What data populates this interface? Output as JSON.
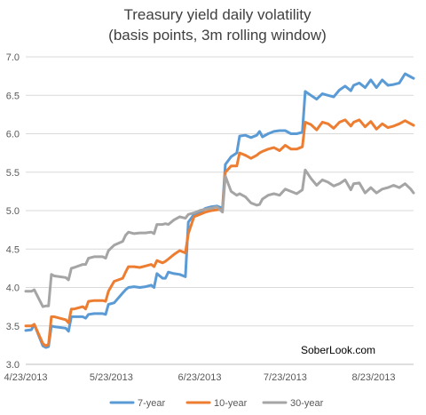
{
  "chart_data": {
    "type": "line",
    "title_lines": [
      "Treasury yield daily volatility",
      "(basis points, 3m rolling window)"
    ],
    "xlabel": "",
    "ylabel": "",
    "x_ticks": [
      "4/23/2013",
      "5/23/2013",
      "6/23/2013",
      "7/23/2013",
      "8/23/2013"
    ],
    "y_ticks": [
      "3.0",
      "3.5",
      "4.0",
      "4.5",
      "5.0",
      "5.5",
      "6.0",
      "6.5",
      "7.0"
    ],
    "ylim": [
      3.0,
      7.0
    ],
    "xlim": [
      "2013-04-23",
      "2013-09-06"
    ],
    "grid": true,
    "legend_position": "bottom",
    "annotation": "SoberLook.com",
    "series": [
      {
        "name": "7-year",
        "color": "#5B9BD5",
        "points": [
          [
            "2013-04-23",
            3.44
          ],
          [
            "2013-04-25",
            3.45
          ],
          [
            "2013-04-26",
            3.52
          ],
          [
            "2013-04-29",
            3.24
          ],
          [
            "2013-04-30",
            3.22
          ],
          [
            "2013-05-01",
            3.23
          ],
          [
            "2013-05-02",
            3.5
          ],
          [
            "2013-05-03",
            3.49
          ],
          [
            "2013-05-07",
            3.47
          ],
          [
            "2013-05-08",
            3.43
          ],
          [
            "2013-05-09",
            3.62
          ],
          [
            "2013-05-10",
            3.62
          ],
          [
            "2013-05-13",
            3.62
          ],
          [
            "2013-05-14",
            3.6
          ],
          [
            "2013-05-15",
            3.65
          ],
          [
            "2013-05-17",
            3.66
          ],
          [
            "2013-05-20",
            3.66
          ],
          [
            "2013-05-21",
            3.65
          ],
          [
            "2013-05-22",
            3.78
          ],
          [
            "2013-05-24",
            3.8
          ],
          [
            "2013-05-27",
            3.93
          ],
          [
            "2013-05-28",
            3.97
          ],
          [
            "2013-05-29",
            4.0
          ],
          [
            "2013-05-31",
            4.01
          ],
          [
            "2013-06-02",
            4.0
          ],
          [
            "2013-06-04",
            4.01
          ],
          [
            "2013-06-06",
            4.03
          ],
          [
            "2013-06-07",
            4.0
          ],
          [
            "2013-06-08",
            4.18
          ],
          [
            "2013-06-10",
            4.12
          ],
          [
            "2013-06-11",
            4.12
          ],
          [
            "2013-06-12",
            4.2
          ],
          [
            "2013-06-14",
            4.18
          ],
          [
            "2013-06-16",
            4.17
          ],
          [
            "2013-06-18",
            4.14
          ],
          [
            "2013-06-19",
            4.85
          ],
          [
            "2013-06-21",
            4.95
          ],
          [
            "2013-06-23",
            4.97
          ],
          [
            "2013-06-25",
            5.03
          ],
          [
            "2013-06-27",
            5.05
          ],
          [
            "2013-06-29",
            5.06
          ],
          [
            "2013-07-01",
            5.03
          ],
          [
            "2013-07-02",
            5.6
          ],
          [
            "2013-07-04",
            5.7
          ],
          [
            "2013-07-06",
            5.75
          ],
          [
            "2013-07-07",
            5.97
          ],
          [
            "2013-07-09",
            5.98
          ],
          [
            "2013-07-11",
            5.95
          ],
          [
            "2013-07-13",
            5.98
          ],
          [
            "2013-07-14",
            6.03
          ],
          [
            "2013-07-15",
            5.96
          ],
          [
            "2013-07-17",
            6.0
          ],
          [
            "2013-07-19",
            6.03
          ],
          [
            "2013-07-21",
            6.04
          ],
          [
            "2013-07-23",
            6.04
          ],
          [
            "2013-07-25",
            6.0
          ],
          [
            "2013-07-27",
            6.0
          ],
          [
            "2013-07-29",
            6.02
          ],
          [
            "2013-07-30",
            6.55
          ],
          [
            "2013-08-01",
            6.5
          ],
          [
            "2013-08-03",
            6.45
          ],
          [
            "2013-08-05",
            6.52
          ],
          [
            "2013-08-07",
            6.5
          ],
          [
            "2013-08-09",
            6.48
          ],
          [
            "2013-08-11",
            6.57
          ],
          [
            "2013-08-13",
            6.62
          ],
          [
            "2013-08-15",
            6.56
          ],
          [
            "2013-08-16",
            6.63
          ],
          [
            "2013-08-18",
            6.66
          ],
          [
            "2013-08-20",
            6.6
          ],
          [
            "2013-08-22",
            6.7
          ],
          [
            "2013-08-24",
            6.6
          ],
          [
            "2013-08-26",
            6.7
          ],
          [
            "2013-08-28",
            6.63
          ],
          [
            "2013-08-30",
            6.64
          ],
          [
            "2013-09-01",
            6.66
          ],
          [
            "2013-09-03",
            6.78
          ],
          [
            "2013-09-05",
            6.74
          ],
          [
            "2013-09-06",
            6.72
          ]
        ]
      },
      {
        "name": "10-year",
        "color": "#ED7D31",
        "points": [
          [
            "2013-04-23",
            3.5
          ],
          [
            "2013-04-25",
            3.5
          ],
          [
            "2013-04-26",
            3.52
          ],
          [
            "2013-04-29",
            3.27
          ],
          [
            "2013-04-30",
            3.24
          ],
          [
            "2013-05-01",
            3.26
          ],
          [
            "2013-05-02",
            3.62
          ],
          [
            "2013-05-03",
            3.62
          ],
          [
            "2013-05-07",
            3.58
          ],
          [
            "2013-05-08",
            3.54
          ],
          [
            "2013-05-09",
            3.72
          ],
          [
            "2013-05-10",
            3.72
          ],
          [
            "2013-05-13",
            3.75
          ],
          [
            "2013-05-14",
            3.72
          ],
          [
            "2013-05-15",
            3.82
          ],
          [
            "2013-05-17",
            3.83
          ],
          [
            "2013-05-20",
            3.83
          ],
          [
            "2013-05-21",
            3.82
          ],
          [
            "2013-05-22",
            3.95
          ],
          [
            "2013-05-24",
            4.08
          ],
          [
            "2013-05-27",
            4.12
          ],
          [
            "2013-05-28",
            4.2
          ],
          [
            "2013-05-29",
            4.27
          ],
          [
            "2013-05-31",
            4.27
          ],
          [
            "2013-06-02",
            4.26
          ],
          [
            "2013-06-04",
            4.28
          ],
          [
            "2013-06-06",
            4.3
          ],
          [
            "2013-06-07",
            4.27
          ],
          [
            "2013-06-08",
            4.35
          ],
          [
            "2013-06-10",
            4.32
          ],
          [
            "2013-06-11",
            4.34
          ],
          [
            "2013-06-12",
            4.37
          ],
          [
            "2013-06-14",
            4.43
          ],
          [
            "2013-06-16",
            4.48
          ],
          [
            "2013-06-18",
            4.45
          ],
          [
            "2013-06-19",
            4.7
          ],
          [
            "2013-06-21",
            4.92
          ],
          [
            "2013-06-23",
            4.95
          ],
          [
            "2013-06-25",
            4.98
          ],
          [
            "2013-06-27",
            5.0
          ],
          [
            "2013-06-29",
            5.01
          ],
          [
            "2013-07-01",
            5.02
          ],
          [
            "2013-07-02",
            5.5
          ],
          [
            "2013-07-04",
            5.58
          ],
          [
            "2013-07-06",
            5.58
          ],
          [
            "2013-07-07",
            5.75
          ],
          [
            "2013-07-09",
            5.72
          ],
          [
            "2013-07-11",
            5.68
          ],
          [
            "2013-07-13",
            5.72
          ],
          [
            "2013-07-14",
            5.75
          ],
          [
            "2013-07-15",
            5.77
          ],
          [
            "2013-07-17",
            5.8
          ],
          [
            "2013-07-19",
            5.82
          ],
          [
            "2013-07-21",
            5.78
          ],
          [
            "2013-07-23",
            5.85
          ],
          [
            "2013-07-25",
            5.8
          ],
          [
            "2013-07-27",
            5.8
          ],
          [
            "2013-07-29",
            5.83
          ],
          [
            "2013-07-30",
            6.15
          ],
          [
            "2013-08-01",
            6.12
          ],
          [
            "2013-08-03",
            6.05
          ],
          [
            "2013-08-05",
            6.15
          ],
          [
            "2013-08-07",
            6.13
          ],
          [
            "2013-08-09",
            6.07
          ],
          [
            "2013-08-11",
            6.15
          ],
          [
            "2013-08-13",
            6.18
          ],
          [
            "2013-08-15",
            6.1
          ],
          [
            "2013-08-16",
            6.15
          ],
          [
            "2013-08-18",
            6.18
          ],
          [
            "2013-08-20",
            6.09
          ],
          [
            "2013-08-22",
            6.16
          ],
          [
            "2013-08-24",
            6.06
          ],
          [
            "2013-08-26",
            6.13
          ],
          [
            "2013-08-28",
            6.08
          ],
          [
            "2013-08-30",
            6.1
          ],
          [
            "2013-09-01",
            6.13
          ],
          [
            "2013-09-03",
            6.17
          ],
          [
            "2013-09-05",
            6.13
          ],
          [
            "2013-09-06",
            6.11
          ]
        ]
      },
      {
        "name": "30-year",
        "color": "#A5A5A5",
        "points": [
          [
            "2013-04-23",
            3.95
          ],
          [
            "2013-04-25",
            3.95
          ],
          [
            "2013-04-26",
            3.97
          ],
          [
            "2013-04-29",
            3.75
          ],
          [
            "2013-04-30",
            3.76
          ],
          [
            "2013-05-01",
            3.76
          ],
          [
            "2013-05-02",
            4.17
          ],
          [
            "2013-05-03",
            4.15
          ],
          [
            "2013-05-07",
            4.13
          ],
          [
            "2013-05-08",
            4.1
          ],
          [
            "2013-05-09",
            4.25
          ],
          [
            "2013-05-10",
            4.26
          ],
          [
            "2013-05-13",
            4.3
          ],
          [
            "2013-05-14",
            4.3
          ],
          [
            "2013-05-15",
            4.38
          ],
          [
            "2013-05-17",
            4.4
          ],
          [
            "2013-05-20",
            4.4
          ],
          [
            "2013-05-21",
            4.38
          ],
          [
            "2013-05-22",
            4.48
          ],
          [
            "2013-05-24",
            4.55
          ],
          [
            "2013-05-27",
            4.6
          ],
          [
            "2013-05-28",
            4.68
          ],
          [
            "2013-05-29",
            4.72
          ],
          [
            "2013-05-31",
            4.7
          ],
          [
            "2013-06-02",
            4.71
          ],
          [
            "2013-06-04",
            4.71
          ],
          [
            "2013-06-06",
            4.72
          ],
          [
            "2013-06-07",
            4.7
          ],
          [
            "2013-06-08",
            4.82
          ],
          [
            "2013-06-10",
            4.82
          ],
          [
            "2013-06-11",
            4.83
          ],
          [
            "2013-06-12",
            4.82
          ],
          [
            "2013-06-14",
            4.88
          ],
          [
            "2013-06-16",
            4.92
          ],
          [
            "2013-06-18",
            4.9
          ],
          [
            "2013-06-19",
            4.95
          ],
          [
            "2013-06-21",
            4.97
          ],
          [
            "2013-06-23",
            5.0
          ],
          [
            "2013-06-25",
            5.02
          ],
          [
            "2013-06-27",
            5.03
          ],
          [
            "2013-06-29",
            5.05
          ],
          [
            "2013-07-01",
            4.98
          ],
          [
            "2013-07-02",
            5.45
          ],
          [
            "2013-07-04",
            5.25
          ],
          [
            "2013-07-06",
            5.2
          ],
          [
            "2013-07-07",
            5.22
          ],
          [
            "2013-07-09",
            5.18
          ],
          [
            "2013-07-11",
            5.1
          ],
          [
            "2013-07-13",
            5.07
          ],
          [
            "2013-07-14",
            5.08
          ],
          [
            "2013-07-15",
            5.15
          ],
          [
            "2013-07-17",
            5.2
          ],
          [
            "2013-07-19",
            5.22
          ],
          [
            "2013-07-21",
            5.2
          ],
          [
            "2013-07-23",
            5.28
          ],
          [
            "2013-07-25",
            5.25
          ],
          [
            "2013-07-27",
            5.22
          ],
          [
            "2013-07-29",
            5.27
          ],
          [
            "2013-07-30",
            5.53
          ],
          [
            "2013-08-01",
            5.42
          ],
          [
            "2013-08-03",
            5.33
          ],
          [
            "2013-08-05",
            5.4
          ],
          [
            "2013-08-07",
            5.37
          ],
          [
            "2013-08-09",
            5.32
          ],
          [
            "2013-08-11",
            5.35
          ],
          [
            "2013-08-13",
            5.4
          ],
          [
            "2013-08-15",
            5.27
          ],
          [
            "2013-08-16",
            5.35
          ],
          [
            "2013-08-18",
            5.36
          ],
          [
            "2013-08-20",
            5.23
          ],
          [
            "2013-08-22",
            5.3
          ],
          [
            "2013-08-24",
            5.23
          ],
          [
            "2013-08-26",
            5.28
          ],
          [
            "2013-08-28",
            5.3
          ],
          [
            "2013-08-30",
            5.33
          ],
          [
            "2013-09-01",
            5.3
          ],
          [
            "2013-09-03",
            5.35
          ],
          [
            "2013-09-05",
            5.28
          ],
          [
            "2013-09-06",
            5.23
          ]
        ]
      }
    ]
  }
}
